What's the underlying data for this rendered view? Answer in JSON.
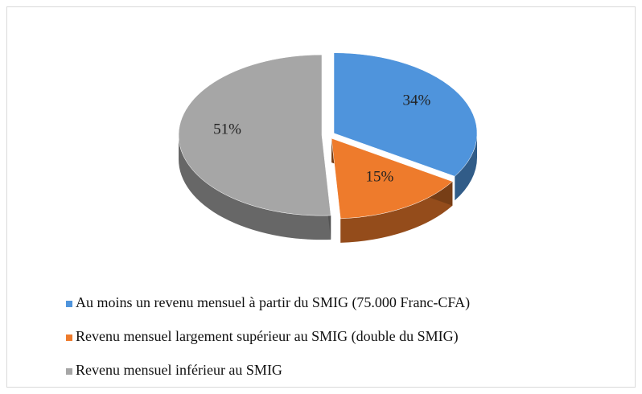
{
  "chart_data": {
    "type": "pie",
    "categories": [
      "Au moins un revenu mensuel à partir du SMIG (75.000 Franc-CFA)",
      "Revenu mensuel largement supérieur au SMIG (double du SMIG)",
      "Revenu mensuel inférieur au SMIG"
    ],
    "values": [
      34,
      15,
      51
    ],
    "value_labels": [
      "34%",
      "15%",
      "51%"
    ],
    "colors": [
      "#4f94dc",
      "#ee7b2c",
      "#a6a6a6"
    ],
    "legend": "bottom"
  }
}
